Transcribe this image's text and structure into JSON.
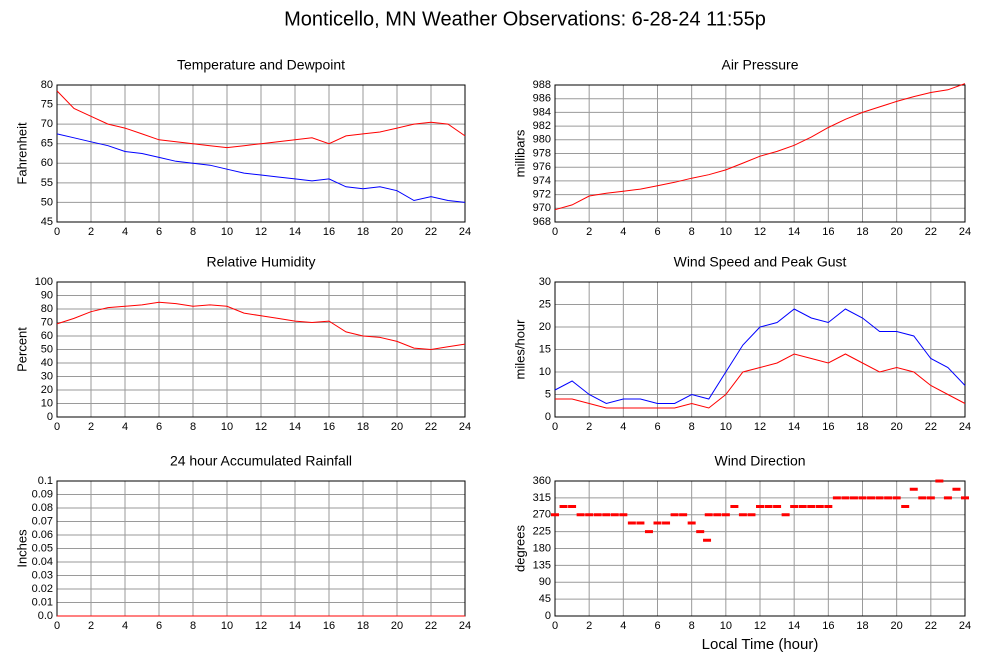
{
  "title": "Monticello, MN Weather Observations: 6-28-24 11:55p",
  "chart_data": [
    {
      "type": "line",
      "title": "Temperature and Dewpoint",
      "ylabel": "Fahrenheit",
      "x": [
        0,
        1,
        2,
        3,
        4,
        5,
        6,
        7,
        8,
        9,
        10,
        11,
        12,
        13,
        14,
        15,
        16,
        17,
        18,
        19,
        20,
        21,
        22,
        23,
        24
      ],
      "series": [
        {
          "color": "#ff0000",
          "values": [
            78.5,
            74,
            72,
            70,
            69,
            67.5,
            66,
            65.5,
            65,
            64.5,
            64,
            64.5,
            65,
            65.5,
            66,
            66.5,
            65,
            67,
            67.5,
            68,
            69,
            70,
            70.5,
            70,
            67
          ]
        },
        {
          "color": "#0000ff",
          "values": [
            67.5,
            66.5,
            65.5,
            64.5,
            63,
            62.5,
            61.5,
            60.5,
            60,
            59.5,
            58.5,
            57.5,
            57,
            56.5,
            56,
            55.5,
            56,
            54,
            53.5,
            54,
            53,
            50.5,
            51.5,
            50.5,
            50
          ]
        }
      ],
      "xlim": [
        0,
        24
      ],
      "xticks": [
        0,
        2,
        4,
        6,
        8,
        10,
        12,
        14,
        16,
        18,
        20,
        22,
        24
      ],
      "ylim": [
        45,
        80
      ],
      "yticks": [
        45,
        50,
        55,
        60,
        65,
        70,
        75,
        80
      ],
      "grid": true
    },
    {
      "type": "line",
      "title": "Air Pressure",
      "ylabel": "millibars",
      "x": [
        0,
        1,
        2,
        3,
        4,
        5,
        6,
        7,
        8,
        9,
        10,
        11,
        12,
        13,
        14,
        15,
        16,
        17,
        18,
        19,
        20,
        21,
        22,
        23,
        24
      ],
      "series": [
        {
          "color": "#ff0000",
          "values": [
            969.8,
            970.5,
            971.8,
            972.2,
            972.5,
            972.8,
            973.3,
            973.8,
            974.4,
            974.9,
            975.6,
            976.6,
            977.6,
            978.3,
            979.2,
            980.4,
            981.8,
            983.0,
            984.0,
            984.8,
            985.6,
            986.3,
            986.9,
            987.3,
            988.2
          ]
        }
      ],
      "xlim": [
        0,
        24
      ],
      "xticks": [
        0,
        2,
        4,
        6,
        8,
        10,
        12,
        14,
        16,
        18,
        20,
        22,
        24
      ],
      "ylim": [
        968,
        988
      ],
      "yticks": [
        968,
        970,
        972,
        974,
        976,
        978,
        980,
        982,
        984,
        986,
        988
      ],
      "grid": true
    },
    {
      "type": "line",
      "title": "Relative Humidity",
      "ylabel": "Percent",
      "x": [
        0,
        1,
        2,
        3,
        4,
        5,
        6,
        7,
        8,
        9,
        10,
        11,
        12,
        13,
        14,
        15,
        16,
        17,
        18,
        19,
        20,
        21,
        22,
        23,
        24
      ],
      "series": [
        {
          "color": "#ff0000",
          "values": [
            69,
            73,
            78,
            81,
            82,
            83,
            85,
            84,
            82,
            83,
            82,
            77,
            75,
            73,
            71,
            70,
            71,
            63,
            60,
            59,
            56,
            51,
            50,
            52,
            54
          ]
        }
      ],
      "xlim": [
        0,
        24
      ],
      "xticks": [
        0,
        2,
        4,
        6,
        8,
        10,
        12,
        14,
        16,
        18,
        20,
        22,
        24
      ],
      "ylim": [
        0,
        100
      ],
      "yticks": [
        0,
        10,
        20,
        30,
        40,
        50,
        60,
        70,
        80,
        90,
        100
      ],
      "grid": true
    },
    {
      "type": "line",
      "title": "Wind Speed and Peak Gust",
      "ylabel": "miles/hour",
      "x": [
        0,
        1,
        2,
        3,
        4,
        5,
        6,
        7,
        8,
        9,
        10,
        11,
        12,
        13,
        14,
        15,
        16,
        17,
        18,
        19,
        20,
        21,
        22,
        23,
        24
      ],
      "series": [
        {
          "color": "#0000ff",
          "values": [
            6,
            8,
            5,
            3,
            4,
            4,
            3,
            3,
            5,
            4,
            10,
            16,
            20,
            21,
            24,
            22,
            21,
            24,
            22,
            19,
            19,
            18,
            13,
            11,
            7
          ]
        },
        {
          "color": "#ff0000",
          "values": [
            4,
            4,
            3,
            2,
            2,
            2,
            2,
            2,
            3,
            2,
            5,
            10,
            11,
            12,
            14,
            13,
            12,
            14,
            12,
            10,
            11,
            10,
            7,
            5,
            3
          ]
        }
      ],
      "xlim": [
        0,
        24
      ],
      "xticks": [
        0,
        2,
        4,
        6,
        8,
        10,
        12,
        14,
        16,
        18,
        20,
        22,
        24
      ],
      "ylim": [
        0,
        30
      ],
      "yticks": [
        0,
        5,
        10,
        15,
        20,
        25,
        30
      ],
      "grid": true
    },
    {
      "type": "line",
      "title": "24 hour Accumulated Rainfall",
      "ylabel": "Inches",
      "x": [
        0,
        24
      ],
      "series": [
        {
          "color": "#ff0000",
          "values": [
            0,
            0
          ]
        }
      ],
      "xlim": [
        0,
        24
      ],
      "xticks": [
        0,
        2,
        4,
        6,
        8,
        10,
        12,
        14,
        16,
        18,
        20,
        22,
        24
      ],
      "ylim": [
        0,
        0.1
      ],
      "yticks": [
        {
          "value": 0,
          "label": "0.0"
        },
        0.01,
        0.02,
        0.03,
        0.04,
        0.05,
        0.06,
        0.07,
        0.08,
        0.09,
        0.1
      ],
      "grid": true
    },
    {
      "type": "scatter",
      "title": "Wind Direction",
      "ylabel": "degrees",
      "xlabel": "Local Time (hour)",
      "x": [
        0,
        0.5,
        1,
        1.5,
        2,
        2.5,
        3,
        3.5,
        4,
        4.5,
        5,
        5.5,
        6,
        6.5,
        7,
        7.5,
        8,
        8.5,
        8.9,
        9,
        9.5,
        10,
        10.5,
        11,
        11.5,
        12,
        12.5,
        13,
        13.5,
        14,
        14.5,
        15,
        15.5,
        16,
        16.5,
        17,
        17.5,
        18,
        18.5,
        19,
        19.5,
        20,
        20.5,
        21,
        21.5,
        22,
        22.5,
        23,
        23.5,
        24
      ],
      "series": [
        {
          "color": "#ff0000",
          "values": [
            270,
            292,
            292,
            270,
            270,
            270,
            270,
            270,
            270,
            248,
            248,
            225,
            248,
            248,
            270,
            270,
            248,
            225,
            202,
            270,
            270,
            270,
            292,
            270,
            270,
            292,
            292,
            292,
            270,
            292,
            292,
            292,
            292,
            292,
            315,
            315,
            315,
            315,
            315,
            315,
            315,
            315,
            292,
            338,
            315,
            315,
            360,
            315,
            338,
            315
          ]
        }
      ],
      "xlim": [
        0,
        24
      ],
      "xticks": [
        0,
        2,
        4,
        6,
        8,
        10,
        12,
        14,
        16,
        18,
        20,
        22,
        24
      ],
      "ylim": [
        0,
        360
      ],
      "yticks": [
        0,
        45,
        90,
        135,
        180,
        225,
        270,
        315,
        360
      ],
      "grid": true
    }
  ]
}
